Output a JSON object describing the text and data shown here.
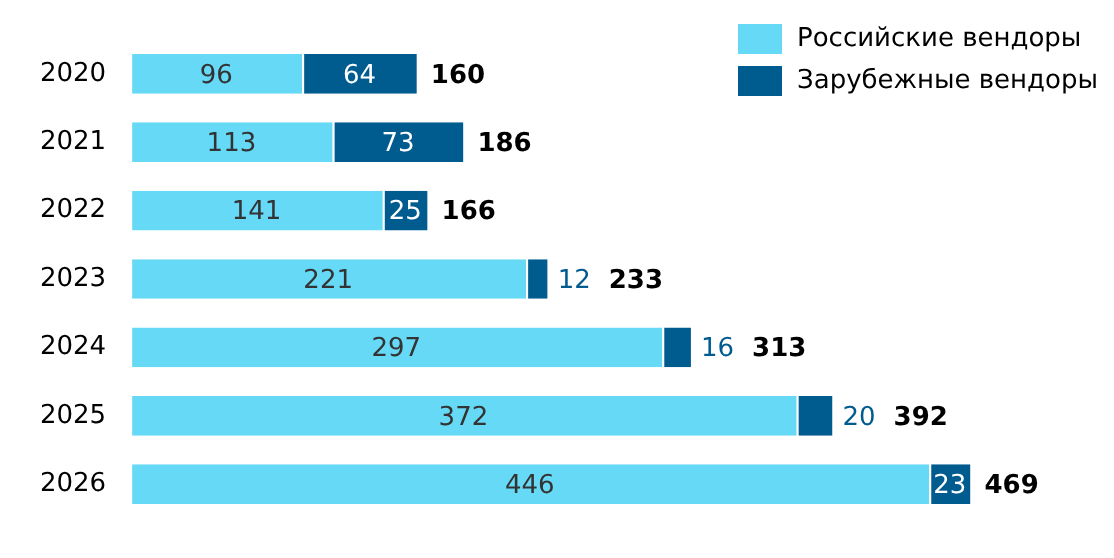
{
  "chart_data": {
    "type": "bar",
    "orientation": "horizontal",
    "stacked": true,
    "categories": [
      "2020",
      "2021",
      "2022",
      "2023",
      "2024",
      "2025",
      "2026"
    ],
    "series": [
      {
        "name": "Российские вендоры",
        "color": "#66d9f7",
        "values": [
          96,
          113,
          141,
          221,
          297,
          372,
          446
        ]
      },
      {
        "name": "Зарубежные вендоры",
        "color": "#005b8f",
        "values": [
          64,
          73,
          25,
          12,
          16,
          20,
          23
        ]
      }
    ],
    "data_labels": true,
    "totals": [
      "160",
      "186",
      "166",
      "233",
      "313",
      "392",
      "469"
    ],
    "legend": "top right"
  }
}
